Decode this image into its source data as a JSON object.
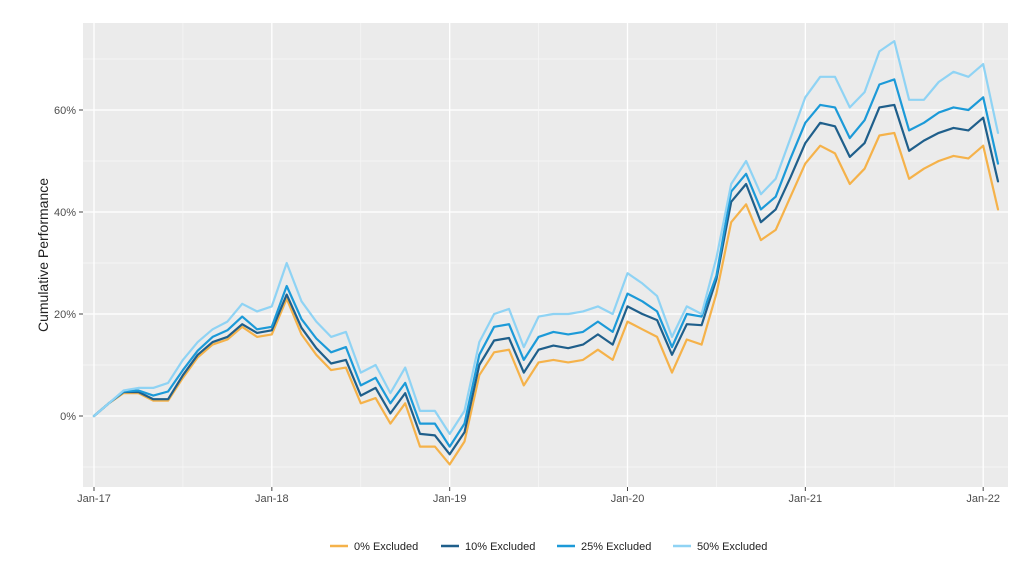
{
  "chart_data": {
    "type": "line",
    "title": "",
    "xlabel": "",
    "ylabel": "Cumulative Performance",
    "x_ticks": [
      "Jan-17",
      "Jan-18",
      "Jan-19",
      "Jan-20",
      "Jan-21",
      "Jan-22"
    ],
    "y_ticks": [
      "0%",
      "20%",
      "40%",
      "60%"
    ],
    "y_tick_values": [
      0,
      20,
      40,
      60
    ],
    "xlim": [
      "2017-01",
      "2022-02"
    ],
    "ylim": [
      -13,
      77
    ],
    "legend_position": "bottom",
    "grid": true,
    "x": [
      "2017-01",
      "2017-02",
      "2017-03",
      "2017-04",
      "2017-05",
      "2017-06",
      "2017-07",
      "2017-08",
      "2017-09",
      "2017-10",
      "2017-11",
      "2017-12",
      "2018-01",
      "2018-02",
      "2018-03",
      "2018-04",
      "2018-05",
      "2018-06",
      "2018-07",
      "2018-08",
      "2018-09",
      "2018-10",
      "2018-11",
      "2018-12",
      "2019-01",
      "2019-02",
      "2019-03",
      "2019-04",
      "2019-05",
      "2019-06",
      "2019-07",
      "2019-08",
      "2019-09",
      "2019-10",
      "2019-11",
      "2019-12",
      "2020-01",
      "2020-02",
      "2020-03",
      "2020-04",
      "2020-05",
      "2020-06",
      "2020-07",
      "2020-08",
      "2020-09",
      "2020-10",
      "2020-11",
      "2020-12",
      "2021-01",
      "2021-02",
      "2021-03",
      "2021-04",
      "2021-05",
      "2021-06",
      "2021-07",
      "2021-08",
      "2021-09",
      "2021-10",
      "2021-11",
      "2021-12",
      "2022-01",
      "2022-02"
    ],
    "series": [
      {
        "name": "0% Excluded",
        "color": "#f5b24a",
        "values": [
          0.0,
          2.5,
          4.5,
          4.5,
          3.0,
          3.0,
          7.5,
          11.5,
          14.0,
          15.0,
          17.5,
          15.5,
          16.0,
          23.0,
          16.0,
          12.0,
          9.0,
          9.5,
          2.5,
          3.5,
          -1.5,
          2.5,
          -6.0,
          -6.0,
          -9.5,
          -5.0,
          8.0,
          12.5,
          13.0,
          6.0,
          10.5,
          11.0,
          10.5,
          11.0,
          13.0,
          11.0,
          18.5,
          17.0,
          15.5,
          8.5,
          15.0,
          14.0,
          24.0,
          38.0,
          41.5,
          34.5,
          36.5,
          43.0,
          49.5,
          53.0,
          51.5,
          45.5,
          48.5,
          55.0,
          55.5,
          46.5,
          48.5,
          50.0,
          51.0,
          50.5,
          53.0,
          40.5
        ]
      },
      {
        "name": "10% Excluded",
        "color": "#1f5f8b",
        "values": [
          0.0,
          2.5,
          4.7,
          4.7,
          3.3,
          3.3,
          8.0,
          12.0,
          14.5,
          15.5,
          18.0,
          16.3,
          16.8,
          23.8,
          17.3,
          13.3,
          10.3,
          11.0,
          4.0,
          5.5,
          0.5,
          4.5,
          -3.5,
          -3.8,
          -7.5,
          -3.2,
          10.0,
          14.8,
          15.3,
          8.5,
          13.0,
          13.8,
          13.3,
          14.0,
          16.0,
          14.0,
          21.5,
          20.0,
          18.8,
          12.0,
          18.0,
          17.8,
          26.8,
          42.0,
          45.5,
          38.0,
          40.5,
          46.8,
          53.5,
          57.5,
          56.8,
          50.8,
          53.5,
          60.5,
          61.0,
          52.0,
          54.0,
          55.5,
          56.5,
          56.0,
          58.5,
          46.0
        ]
      },
      {
        "name": "25% Excluded",
        "color": "#1c9ad8",
        "values": [
          0.0,
          2.5,
          4.8,
          5.0,
          4.0,
          4.8,
          9.0,
          12.8,
          15.5,
          16.8,
          19.5,
          17.0,
          17.5,
          25.5,
          19.0,
          15.2,
          12.5,
          13.5,
          6.0,
          7.5,
          2.5,
          6.5,
          -1.5,
          -1.5,
          -6.0,
          -1.5,
          12.0,
          17.5,
          18.0,
          11.0,
          15.5,
          16.5,
          16.0,
          16.5,
          18.5,
          16.5,
          24.0,
          22.5,
          20.5,
          13.5,
          20.0,
          19.5,
          27.5,
          44.0,
          47.5,
          40.5,
          43.0,
          50.5,
          57.5,
          61.0,
          60.5,
          54.5,
          58.0,
          65.0,
          66.0,
          56.0,
          57.5,
          59.5,
          60.5,
          60.0,
          62.5,
          49.5
        ]
      },
      {
        "name": "50% Excluded",
        "color": "#8fd3f4",
        "values": [
          0.0,
          2.5,
          5.0,
          5.5,
          5.5,
          6.5,
          11.0,
          14.5,
          17.0,
          18.5,
          22.0,
          20.5,
          21.5,
          30.0,
          22.5,
          18.5,
          15.5,
          16.5,
          8.5,
          10.0,
          4.5,
          9.5,
          1.0,
          1.0,
          -3.5,
          1.0,
          14.5,
          20.0,
          21.0,
          13.5,
          19.5,
          20.0,
          20.0,
          20.5,
          21.5,
          20.0,
          28.0,
          26.0,
          23.5,
          15.5,
          21.5,
          20.0,
          31.0,
          45.5,
          50.0,
          43.5,
          46.5,
          54.5,
          62.5,
          66.5,
          66.5,
          60.5,
          63.5,
          71.5,
          73.5,
          62.0,
          62.0,
          65.5,
          67.5,
          66.5,
          69.0,
          55.5
        ]
      }
    ]
  }
}
